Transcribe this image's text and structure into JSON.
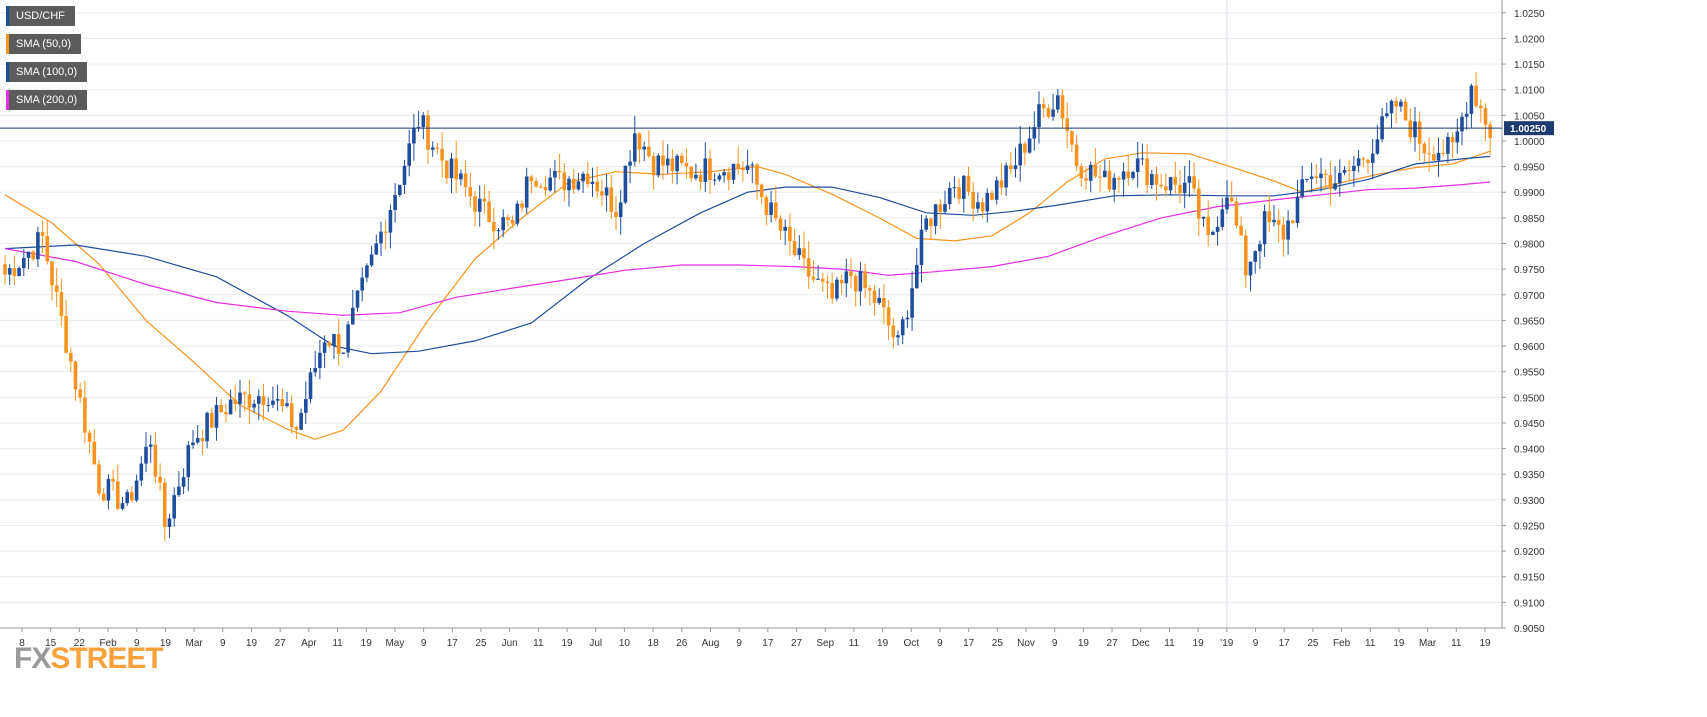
{
  "legend": {
    "items": [
      {
        "label": "USD/CHF",
        "color": "#1f4e9c"
      },
      {
        "label": "SMA (50,0)",
        "color": "#f7931e"
      },
      {
        "label": "SMA (100,0)",
        "color": "#1f4e9c"
      },
      {
        "label": "SMA (200,0)",
        "color": "#e62ee6"
      }
    ]
  },
  "watermark": {
    "prefix": "FX",
    "suffix": "STREET"
  },
  "chart_data": {
    "type": "candlestick",
    "instrument": "USD/CHF",
    "timeframe": "daily",
    "ylim": [
      0.905,
      1.0275
    ],
    "y_ticks": [
      "1.0250",
      "1.0200",
      "1.0150",
      "1.0100",
      "1.0050",
      "1.0000",
      "0.9950",
      "0.9900",
      "0.9850",
      "0.9800",
      "0.9750",
      "0.9700",
      "0.9650",
      "0.9600",
      "0.9550",
      "0.9500",
      "0.9450",
      "0.9400",
      "0.9350",
      "0.9300",
      "0.9250",
      "0.9200",
      "0.9150",
      "0.9100",
      "0.9050"
    ],
    "x_ticks": [
      "8",
      "15",
      "22",
      "Feb",
      "9",
      "19",
      "Mar",
      "9",
      "19",
      "27",
      "Apr",
      "11",
      "19",
      "May",
      "9",
      "17",
      "25",
      "Jun",
      "11",
      "19",
      "Jul",
      "10",
      "18",
      "26",
      "Aug",
      "9",
      "17",
      "27",
      "Sep",
      "11",
      "19",
      "Oct",
      "9",
      "17",
      "25",
      "Nov",
      "9",
      "19",
      "27",
      "Dec",
      "11",
      "19",
      "'19",
      "9",
      "17",
      "25",
      "Feb",
      "11",
      "19",
      "Mar",
      "11",
      "19"
    ],
    "last_price": "1.00250",
    "grid": true,
    "bullish_color": "#1f4e9c",
    "bearish_color": "#f7931e",
    "close_anchors": [
      [
        0,
        0.974
      ],
      [
        8,
        0.981
      ],
      [
        12,
        0.965
      ],
      [
        20,
        0.933
      ],
      [
        26,
        0.929
      ],
      [
        31,
        0.942
      ],
      [
        34,
        0.925
      ],
      [
        40,
        0.942
      ],
      [
        48,
        0.949
      ],
      [
        56,
        0.951
      ],
      [
        62,
        0.944
      ],
      [
        68,
        0.962
      ],
      [
        72,
        0.96
      ],
      [
        80,
        0.982
      ],
      [
        88,
        1.004
      ],
      [
        94,
        0.995
      ],
      [
        102,
        0.986
      ],
      [
        108,
        0.983
      ],
      [
        112,
        0.994
      ],
      [
        118,
        0.992
      ],
      [
        124,
        0.994
      ],
      [
        130,
        0.987
      ],
      [
        134,
        1.002
      ],
      [
        138,
        0.996
      ],
      [
        146,
        0.994
      ],
      [
        152,
        0.995
      ],
      [
        158,
        0.995
      ],
      [
        164,
        0.984
      ],
      [
        170,
        0.975
      ],
      [
        176,
        0.969
      ],
      [
        180,
        0.974
      ],
      [
        186,
        0.968
      ],
      [
        190,
        0.96
      ],
      [
        196,
        0.984
      ],
      [
        202,
        0.992
      ],
      [
        208,
        0.988
      ],
      [
        214,
        0.994
      ],
      [
        220,
        1.005
      ],
      [
        224,
        1.009
      ],
      [
        228,
        0.996
      ],
      [
        234,
        0.992
      ],
      [
        240,
        0.996
      ],
      [
        246,
        0.992
      ],
      [
        252,
        0.991
      ],
      [
        256,
        0.98
      ],
      [
        260,
        0.991
      ],
      [
        264,
        0.975
      ],
      [
        268,
        0.984
      ],
      [
        272,
        0.982
      ],
      [
        278,
        0.994
      ],
      [
        284,
        0.992
      ],
      [
        290,
        0.998
      ],
      [
        296,
        1.007
      ],
      [
        302,
        0.999
      ],
      [
        308,
        0.998
      ],
      [
        312,
        1.011
      ],
      [
        316,
        1.002
      ]
    ],
    "series": [
      {
        "name": "SMA (50,0)",
        "color": "#f7931e",
        "values": [
          [
            0,
            0.9895
          ],
          [
            10,
            0.984
          ],
          [
            20,
            0.976
          ],
          [
            30,
            0.965
          ],
          [
            40,
            0.957
          ],
          [
            50,
            0.9485
          ],
          [
            60,
            0.9438
          ],
          [
            66,
            0.9418
          ],
          [
            72,
            0.9436
          ],
          [
            80,
            0.9512
          ],
          [
            90,
            0.965
          ],
          [
            100,
            0.977
          ],
          [
            110,
            0.985
          ],
          [
            120,
            0.992
          ],
          [
            130,
            0.994
          ],
          [
            140,
            0.9935
          ],
          [
            150,
            0.994
          ],
          [
            160,
            0.995
          ],
          [
            166,
            0.9935
          ],
          [
            176,
            0.9896
          ],
          [
            186,
            0.985
          ],
          [
            194,
            0.981
          ],
          [
            202,
            0.9805
          ],
          [
            210,
            0.9815
          ],
          [
            218,
            0.986
          ],
          [
            226,
            0.992
          ],
          [
            234,
            0.9965
          ],
          [
            242,
            0.9977
          ],
          [
            252,
            0.9975
          ],
          [
            260,
            0.9952
          ],
          [
            270,
            0.9922
          ],
          [
            276,
            0.99
          ],
          [
            284,
            0.9918
          ],
          [
            292,
            0.9935
          ],
          [
            300,
            0.9948
          ],
          [
            308,
            0.9955
          ],
          [
            316,
            0.998
          ]
        ]
      },
      {
        "name": "SMA (100,0)",
        "color": "#1f4e9c",
        "values": [
          [
            0,
            0.979
          ],
          [
            15,
            0.9797
          ],
          [
            30,
            0.9775
          ],
          [
            45,
            0.9735
          ],
          [
            60,
            0.966
          ],
          [
            70,
            0.96
          ],
          [
            78,
            0.9585
          ],
          [
            88,
            0.959
          ],
          [
            100,
            0.961
          ],
          [
            112,
            0.9645
          ],
          [
            124,
            0.973
          ],
          [
            136,
            0.98
          ],
          [
            148,
            0.986
          ],
          [
            158,
            0.99
          ],
          [
            166,
            0.991
          ],
          [
            176,
            0.991
          ],
          [
            186,
            0.989
          ],
          [
            196,
            0.986
          ],
          [
            206,
            0.9855
          ],
          [
            214,
            0.9862
          ],
          [
            224,
            0.9875
          ],
          [
            236,
            0.9893
          ],
          [
            248,
            0.9895
          ],
          [
            260,
            0.9893
          ],
          [
            270,
            0.9893
          ],
          [
            280,
            0.9905
          ],
          [
            290,
            0.9925
          ],
          [
            300,
            0.9955
          ],
          [
            310,
            0.9965
          ],
          [
            316,
            0.997
          ]
        ]
      },
      {
        "name": "SMA (200,0)",
        "color": "#e62ee6",
        "values": [
          [
            0,
            0.979
          ],
          [
            15,
            0.9765
          ],
          [
            30,
            0.972
          ],
          [
            45,
            0.9685
          ],
          [
            60,
            0.9668
          ],
          [
            72,
            0.966
          ],
          [
            84,
            0.9665
          ],
          [
            96,
            0.9695
          ],
          [
            108,
            0.9713
          ],
          [
            120,
            0.973
          ],
          [
            132,
            0.9748
          ],
          [
            144,
            0.9758
          ],
          [
            156,
            0.9758
          ],
          [
            168,
            0.9755
          ],
          [
            178,
            0.975
          ],
          [
            188,
            0.9738
          ],
          [
            198,
            0.9745
          ],
          [
            210,
            0.9755
          ],
          [
            222,
            0.9775
          ],
          [
            234,
            0.9815
          ],
          [
            246,
            0.985
          ],
          [
            258,
            0.9872
          ],
          [
            270,
            0.9885
          ],
          [
            280,
            0.9895
          ],
          [
            290,
            0.9905
          ],
          [
            300,
            0.9908
          ],
          [
            310,
            0.9915
          ],
          [
            316,
            0.992
          ]
        ]
      }
    ]
  }
}
